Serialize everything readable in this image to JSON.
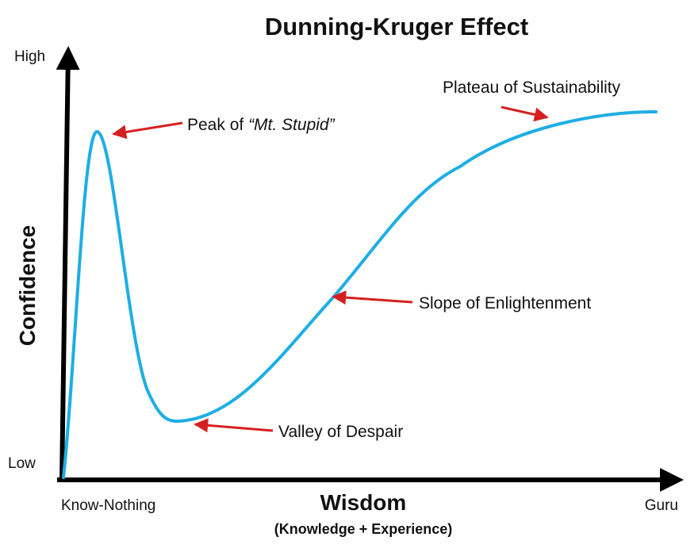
{
  "title": "Dunning-Kruger Effect",
  "axes": {
    "y_label": "Confidence",
    "y_high": "High",
    "y_low": "Low",
    "x_label": "Wisdom",
    "x_sublabel": "(Knowledge + Experience)",
    "x_start": "Know-Nothing",
    "x_end": "Guru"
  },
  "annotations": {
    "peak": {
      "prefix": "Peak of ",
      "emphasis": "“Mt. Stupid”"
    },
    "valley": "Valley of Despair",
    "slope": "Slope of Enlightenment",
    "plateau": "Plateau of Sustainability"
  },
  "colors": {
    "curve": "#1eaee3",
    "arrow": "#d62020",
    "axis": "#000000"
  }
}
